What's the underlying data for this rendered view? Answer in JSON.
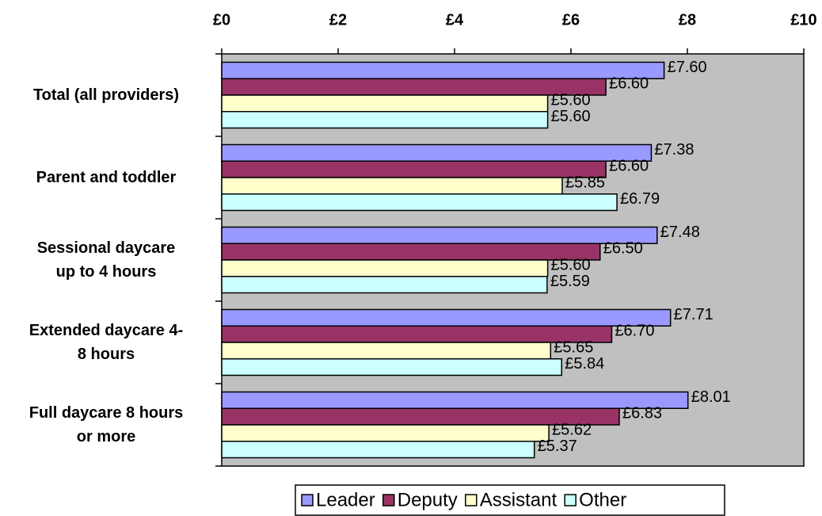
{
  "chart_data": {
    "type": "bar",
    "orientation": "horizontal",
    "categories": [
      "Total (all providers)",
      "Parent and toddler",
      "Sessional daycare\nup to 4 hours",
      "Extended daycare 4-\n8 hours",
      "Full daycare 8 hours\nor more"
    ],
    "series": [
      {
        "name": "Leader",
        "color": "#9999ff",
        "values": [
          7.6,
          7.38,
          7.48,
          7.71,
          8.01
        ],
        "value_labels": [
          "£7.60",
          "£7.38",
          "£7.48",
          "£7.71",
          "£8.01"
        ]
      },
      {
        "name": "Deputy",
        "color": "#993366",
        "values": [
          6.6,
          6.6,
          6.5,
          6.7,
          6.83
        ],
        "value_labels": [
          "£6.60",
          "£6.60",
          "£6.50",
          "£6.70",
          "£6.83"
        ]
      },
      {
        "name": "Assistant",
        "color": "#ffffcc",
        "values": [
          5.6,
          5.85,
          5.6,
          5.65,
          5.62
        ],
        "value_labels": [
          "£5.60",
          "£5.85",
          "£5.60",
          "£5.65",
          "£5.62"
        ]
      },
      {
        "name": "Other",
        "color": "#ccffff",
        "values": [
          5.6,
          6.79,
          5.59,
          5.84,
          5.37
        ],
        "value_labels": [
          "£5.60",
          "£6.79",
          "£5.59",
          "£5.84",
          "£5.37"
        ]
      }
    ],
    "xlim": [
      0,
      10
    ],
    "xticks": [
      {
        "value": 0,
        "label": "£0"
      },
      {
        "value": 2,
        "label": "£2"
      },
      {
        "value": 4,
        "label": "£4"
      },
      {
        "value": 6,
        "label": "£6"
      },
      {
        "value": 8,
        "label": "£8"
      },
      {
        "value": 10,
        "label": "£10"
      }
    ],
    "plot_background": "#c0c0c0",
    "legend": "bottom"
  }
}
